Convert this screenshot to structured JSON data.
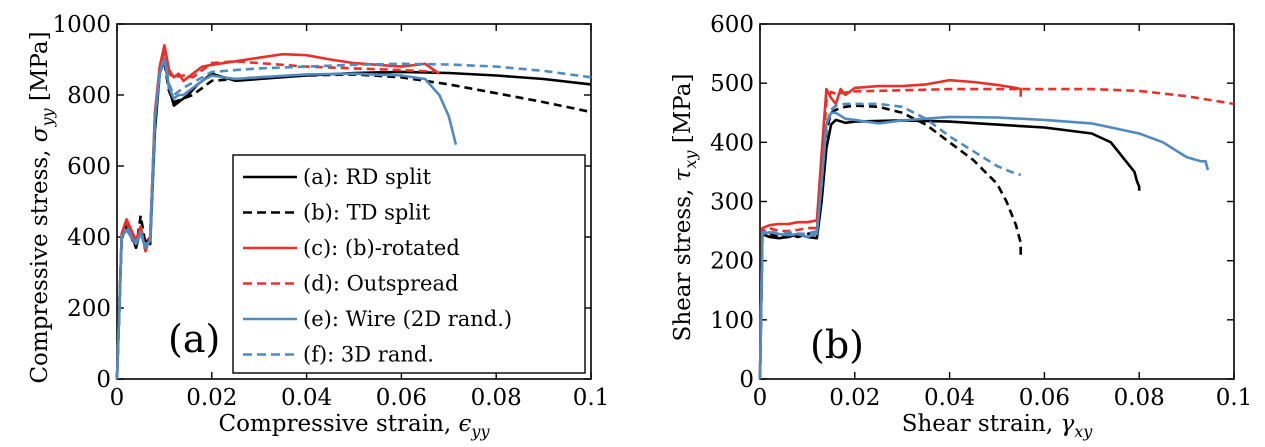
{
  "chart_data": [
    {
      "type": "line",
      "panel_label": "(a)",
      "xlabel": "Compressive strain, ϵyy",
      "xlabel_main": "Compressive strain, ",
      "xlabel_sym": "ϵ",
      "xlabel_sub": "yy",
      "ylabel": "Compressive stress, σyy [MPa]",
      "ylabel_main": "Compressive stress, ",
      "ylabel_sym": "σ",
      "ylabel_sub": "yy",
      "ylabel_unit": " [MPa]",
      "xlim": [
        0,
        0.1
      ],
      "ylim": [
        0,
        1000
      ],
      "xticks": [
        "0",
        "0.02",
        "0.04",
        "0.06",
        "0.08",
        "0.1"
      ],
      "yticks": [
        "0",
        "200",
        "400",
        "600",
        "800",
        "1000"
      ],
      "legend_location": "lower-right",
      "series": [
        {
          "name": "(a): RD split",
          "color": "#000000",
          "dash": "solid",
          "x": [
            0,
            0.001,
            0.002,
            0.003,
            0.004,
            0.005,
            0.006,
            0.007,
            0.008,
            0.009,
            0.01,
            0.011,
            0.012,
            0.013,
            0.015,
            0.017,
            0.02,
            0.025,
            0.03,
            0.04,
            0.05,
            0.06,
            0.07,
            0.08,
            0.09,
            0.1
          ],
          "y": [
            0,
            400,
            430,
            410,
            370,
            420,
            390,
            380,
            700,
            860,
            900,
            820,
            770,
            780,
            800,
            830,
            860,
            840,
            845,
            855,
            862,
            865,
            862,
            855,
            845,
            830
          ]
        },
        {
          "name": "(b): TD split",
          "color": "#000000",
          "dash": "dashed",
          "x": [
            0,
            0.001,
            0.002,
            0.003,
            0.004,
            0.005,
            0.006,
            0.007,
            0.008,
            0.009,
            0.01,
            0.011,
            0.012,
            0.014,
            0.016,
            0.018,
            0.02,
            0.025,
            0.03,
            0.04,
            0.05,
            0.06,
            0.07,
            0.08,
            0.09,
            0.1
          ],
          "y": [
            0,
            395,
            440,
            400,
            370,
            460,
            380,
            400,
            720,
            870,
            890,
            810,
            780,
            790,
            800,
            820,
            840,
            845,
            850,
            855,
            858,
            850,
            830,
            805,
            780,
            752
          ]
        },
        {
          "name": "(c): (b)-rotated",
          "color": "#e8312a",
          "dash": "solid",
          "x": [
            0,
            0.001,
            0.002,
            0.003,
            0.004,
            0.005,
            0.006,
            0.007,
            0.008,
            0.009,
            0.01,
            0.011,
            0.012,
            0.013,
            0.014,
            0.015,
            0.016,
            0.018,
            0.02,
            0.025,
            0.03,
            0.035,
            0.04,
            0.045,
            0.05,
            0.055,
            0.06,
            0.065,
            0.068
          ],
          "y": [
            0,
            410,
            450,
            420,
            390,
            430,
            360,
            400,
            750,
            880,
            940,
            870,
            850,
            860,
            840,
            850,
            860,
            880,
            885,
            895,
            905,
            915,
            912,
            900,
            890,
            885,
            880,
            888,
            860
          ]
        },
        {
          "name": "(d): Outspread",
          "color": "#e8312a",
          "dash": "dashed",
          "x": [
            0,
            0.001,
            0.002,
            0.003,
            0.004,
            0.005,
            0.006,
            0.007,
            0.008,
            0.009,
            0.01,
            0.011,
            0.012,
            0.014,
            0.016,
            0.018,
            0.02,
            0.025,
            0.03,
            0.04,
            0.05,
            0.06,
            0.067
          ],
          "y": [
            0,
            400,
            440,
            410,
            380,
            420,
            370,
            400,
            740,
            870,
            920,
            860,
            850,
            855,
            850,
            870,
            890,
            895,
            890,
            880,
            875,
            870,
            866
          ]
        },
        {
          "name": "(e): Wire (2D rand.)",
          "color": "#4f8ac0",
          "dash": "solid",
          "x": [
            0,
            0.001,
            0.002,
            0.003,
            0.004,
            0.005,
            0.006,
            0.007,
            0.008,
            0.009,
            0.01,
            0.011,
            0.012,
            0.013,
            0.014,
            0.016,
            0.018,
            0.02,
            0.025,
            0.03,
            0.04,
            0.05,
            0.06,
            0.065,
            0.068,
            0.07,
            0.0715
          ],
          "y": [
            0,
            400,
            420,
            400,
            380,
            410,
            370,
            390,
            730,
            860,
            900,
            820,
            790,
            800,
            800,
            820,
            840,
            855,
            845,
            850,
            858,
            860,
            855,
            845,
            800,
            740,
            660
          ]
        },
        {
          "name": "(f): 3D rand.",
          "color": "#4f8ac0",
          "dash": "dashed",
          "x": [
            0,
            0.001,
            0.002,
            0.003,
            0.004,
            0.005,
            0.006,
            0.007,
            0.008,
            0.009,
            0.01,
            0.011,
            0.012,
            0.014,
            0.016,
            0.018,
            0.02,
            0.025,
            0.03,
            0.04,
            0.05,
            0.06,
            0.07,
            0.08,
            0.09,
            0.1
          ],
          "y": [
            0,
            395,
            430,
            405,
            385,
            415,
            375,
            395,
            735,
            865,
            905,
            830,
            800,
            820,
            835,
            850,
            865,
            870,
            875,
            880,
            885,
            888,
            886,
            880,
            868,
            850
          ]
        }
      ]
    },
    {
      "type": "line",
      "panel_label": "(b)",
      "xlabel": "Shear strain, γxy",
      "xlabel_main": "Shear strain, ",
      "xlabel_sym": "γ",
      "xlabel_sub": "xy",
      "ylabel": "Shear stress, τxy [MPa]",
      "ylabel_main": "Shear stress, ",
      "ylabel_sym": "τ",
      "ylabel_sub": "xy",
      "ylabel_unit": " [MPa]",
      "xlim": [
        0,
        0.1
      ],
      "ylim": [
        0,
        600
      ],
      "xticks": [
        "0",
        "0.02",
        "0.04",
        "0.06",
        "0.08",
        "0.1"
      ],
      "yticks": [
        "0",
        "100",
        "200",
        "300",
        "400",
        "500",
        "600"
      ],
      "series": [
        {
          "name": "(a): RD split",
          "color": "#000000",
          "dash": "solid",
          "x": [
            0,
            0.0005,
            0.002,
            0.004,
            0.006,
            0.008,
            0.01,
            0.012,
            0.013,
            0.014,
            0.015,
            0.016,
            0.018,
            0.02,
            0.03,
            0.04,
            0.05,
            0.06,
            0.07,
            0.074,
            0.077,
            0.079,
            0.0795,
            0.08,
            0.08
          ],
          "y": [
            0,
            245,
            240,
            238,
            240,
            245,
            240,
            238,
            300,
            390,
            430,
            438,
            433,
            435,
            437,
            435,
            430,
            425,
            415,
            400,
            370,
            350,
            335,
            325,
            318
          ]
        },
        {
          "name": "(b): TD split",
          "color": "#000000",
          "dash": "dashed",
          "x": [
            0,
            0.0005,
            0.002,
            0.004,
            0.006,
            0.008,
            0.01,
            0.012,
            0.013,
            0.014,
            0.015,
            0.016,
            0.018,
            0.02,
            0.025,
            0.03,
            0.035,
            0.04,
            0.045,
            0.05,
            0.052,
            0.054,
            0.055,
            0.055
          ],
          "y": [
            0,
            250,
            245,
            240,
            245,
            240,
            245,
            250,
            320,
            420,
            450,
            455,
            460,
            462,
            460,
            450,
            430,
            400,
            370,
            330,
            300,
            260,
            230,
            205
          ]
        },
        {
          "name": "(c): (b)-rotated",
          "color": "#e8312a",
          "dash": "solid",
          "x": [
            0,
            0.0005,
            0.002,
            0.004,
            0.006,
            0.008,
            0.01,
            0.012,
            0.013,
            0.014,
            0.015,
            0.016,
            0.017,
            0.018,
            0.02,
            0.025,
            0.03,
            0.035,
            0.04,
            0.045,
            0.05,
            0.054,
            0.055,
            0.055
          ],
          "y": [
            0,
            255,
            260,
            262,
            262,
            265,
            265,
            268,
            380,
            490,
            475,
            465,
            490,
            480,
            492,
            495,
            495,
            498,
            505,
            502,
            497,
            492,
            490,
            477
          ]
        },
        {
          "name": "(d): Outspread",
          "color": "#e8312a",
          "dash": "dashed",
          "x": [
            0,
            0.0005,
            0.002,
            0.004,
            0.006,
            0.008,
            0.01,
            0.012,
            0.013,
            0.014,
            0.015,
            0.016,
            0.018,
            0.02,
            0.03,
            0.04,
            0.05,
            0.06,
            0.07,
            0.08,
            0.09,
            0.1
          ],
          "y": [
            0,
            250,
            255,
            250,
            250,
            252,
            255,
            255,
            350,
            470,
            485,
            482,
            484,
            486,
            488,
            490,
            490,
            490,
            490,
            487,
            478,
            465
          ]
        },
        {
          "name": "(e): Wire (2D rand.)",
          "color": "#4f8ac0",
          "dash": "solid",
          "x": [
            0,
            0.0005,
            0.002,
            0.004,
            0.006,
            0.008,
            0.01,
            0.012,
            0.013,
            0.014,
            0.015,
            0.016,
            0.018,
            0.02,
            0.025,
            0.03,
            0.04,
            0.05,
            0.06,
            0.07,
            0.08,
            0.085,
            0.09,
            0.093,
            0.094,
            0.0945
          ],
          "y": [
            0,
            245,
            248,
            245,
            243,
            245,
            240,
            245,
            330,
            430,
            450,
            450,
            440,
            438,
            432,
            437,
            443,
            442,
            438,
            432,
            415,
            400,
            375,
            368,
            368,
            353
          ]
        },
        {
          "name": "(f): 3D rand.",
          "color": "#4f8ac0",
          "dash": "dashed",
          "x": [
            0,
            0.0005,
            0.002,
            0.004,
            0.006,
            0.008,
            0.01,
            0.012,
            0.013,
            0.014,
            0.015,
            0.016,
            0.018,
            0.02,
            0.025,
            0.03,
            0.035,
            0.04,
            0.045,
            0.05,
            0.053,
            0.055
          ],
          "y": [
            0,
            248,
            250,
            245,
            248,
            246,
            245,
            250,
            330,
            430,
            455,
            462,
            465,
            465,
            465,
            460,
            440,
            410,
            385,
            360,
            350,
            345
          ]
        }
      ]
    }
  ]
}
